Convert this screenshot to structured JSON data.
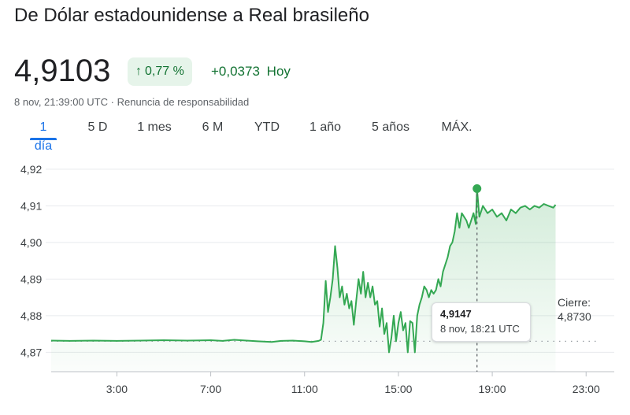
{
  "header": {
    "title": "De Dólar estadounidense a Real brasileño",
    "price": "4,9103",
    "change_pct_arrow": "↑",
    "change_pct": "0,77 %",
    "change_abs": "+0,0373",
    "change_period": "Hoy",
    "timestamp": "8 nov, 21:39:00 UTC",
    "separator": "·",
    "disclaimer": "Renuncia de responsabilidad"
  },
  "tabs": [
    {
      "label": "1 día",
      "active": true
    },
    {
      "label": "5 D",
      "active": false
    },
    {
      "label": "1 mes",
      "active": false
    },
    {
      "label": "6 M",
      "active": false
    },
    {
      "label": "YTD",
      "active": false
    },
    {
      "label": "1 año",
      "active": false
    },
    {
      "label": "5 años",
      "active": false
    },
    {
      "label": "MÁX.",
      "active": false
    }
  ],
  "tooltip": {
    "value": "4,9147",
    "time": "8 nov, 18:21 UTC"
  },
  "close": {
    "label": "Cierre:",
    "value": "4,8730"
  },
  "colors": {
    "up": "#137333",
    "line": "#34a853",
    "accent": "#1a73e8",
    "badge_bg": "#e6f4ea"
  },
  "chart_data": {
    "type": "area",
    "x_unit": "hour UTC",
    "xlim": [
      0.2,
      24.2
    ],
    "ylim": [
      4.8647,
      4.9232
    ],
    "y_ticks": [
      4.87,
      4.88,
      4.89,
      4.9,
      4.91,
      4.92
    ],
    "y_tick_labels": [
      "4,87",
      "4,88",
      "4,89",
      "4,90",
      "4,91",
      "4,92"
    ],
    "x_ticks": [
      3,
      7,
      11,
      15,
      19,
      23
    ],
    "x_tick_labels": [
      "3:00",
      "7:00",
      "11:00",
      "15:00",
      "19:00",
      "23:00"
    ],
    "grid": "horizontal",
    "previous_close": 4.873,
    "highlight_point": {
      "x": 18.35,
      "y": 4.9147
    },
    "series": [
      {
        "x": [
          0.2,
          1.0,
          2.0,
          3.0,
          4.0,
          5.0,
          6.0,
          7.0,
          7.5,
          8.0,
          9.0,
          9.6,
          10.0,
          10.5,
          11.0,
          11.3,
          11.6,
          11.7,
          11.8,
          11.9,
          12.0,
          12.1,
          12.2,
          12.3,
          12.4,
          12.5,
          12.6,
          12.7,
          12.8,
          12.9,
          13.0,
          13.1,
          13.2,
          13.3,
          13.4,
          13.5,
          13.6,
          13.7,
          13.8,
          13.9,
          14.0,
          14.1,
          14.2,
          14.3,
          14.4,
          14.5,
          14.6,
          14.7,
          14.8,
          14.9,
          15.0,
          15.1,
          15.2,
          15.3,
          15.4,
          15.5,
          15.6,
          15.7,
          15.8,
          15.9,
          16.0,
          16.1,
          16.2,
          16.3,
          16.4,
          16.5,
          16.6,
          16.7,
          16.8,
          16.9,
          17.0,
          17.1,
          17.2,
          17.3,
          17.4,
          17.5,
          17.6,
          17.7,
          17.8,
          17.9,
          18.0,
          18.1,
          18.2,
          18.3,
          18.35,
          18.45,
          18.6,
          18.8,
          19.0,
          19.2,
          19.4,
          19.6,
          19.8,
          20.0,
          20.2,
          20.4,
          20.6,
          20.8,
          21.0,
          21.2,
          21.4,
          21.6,
          21.7
        ],
        "y": [
          4.8732,
          4.8731,
          4.8732,
          4.8731,
          4.8732,
          4.8733,
          4.8732,
          4.8733,
          4.8731,
          4.8734,
          4.873,
          4.8728,
          4.8731,
          4.8732,
          4.873,
          4.8728,
          4.8731,
          4.8734,
          4.878,
          4.8895,
          4.881,
          4.885,
          4.89,
          4.899,
          4.893,
          4.885,
          4.888,
          4.883,
          4.886,
          4.882,
          4.884,
          4.8775,
          4.884,
          4.89,
          4.886,
          4.892,
          4.885,
          4.889,
          4.885,
          4.888,
          4.883,
          4.884,
          4.877,
          4.882,
          4.875,
          4.878,
          4.87,
          4.874,
          4.88,
          4.873,
          4.878,
          4.881,
          4.876,
          4.878,
          4.87,
          4.8785,
          4.878,
          4.87,
          4.88,
          4.883,
          4.885,
          4.888,
          4.887,
          4.885,
          4.887,
          4.886,
          4.887,
          4.89,
          4.888,
          4.892,
          4.894,
          4.896,
          4.899,
          4.9,
          4.903,
          4.908,
          4.904,
          4.908,
          4.907,
          4.906,
          4.904,
          4.906,
          4.908,
          4.905,
          4.9147,
          4.907,
          4.91,
          4.908,
          4.909,
          4.907,
          4.908,
          4.906,
          4.909,
          4.908,
          4.9095,
          4.91,
          4.909,
          4.91,
          4.9095,
          4.9105,
          4.91,
          4.9095,
          4.9103
        ]
      }
    ]
  }
}
